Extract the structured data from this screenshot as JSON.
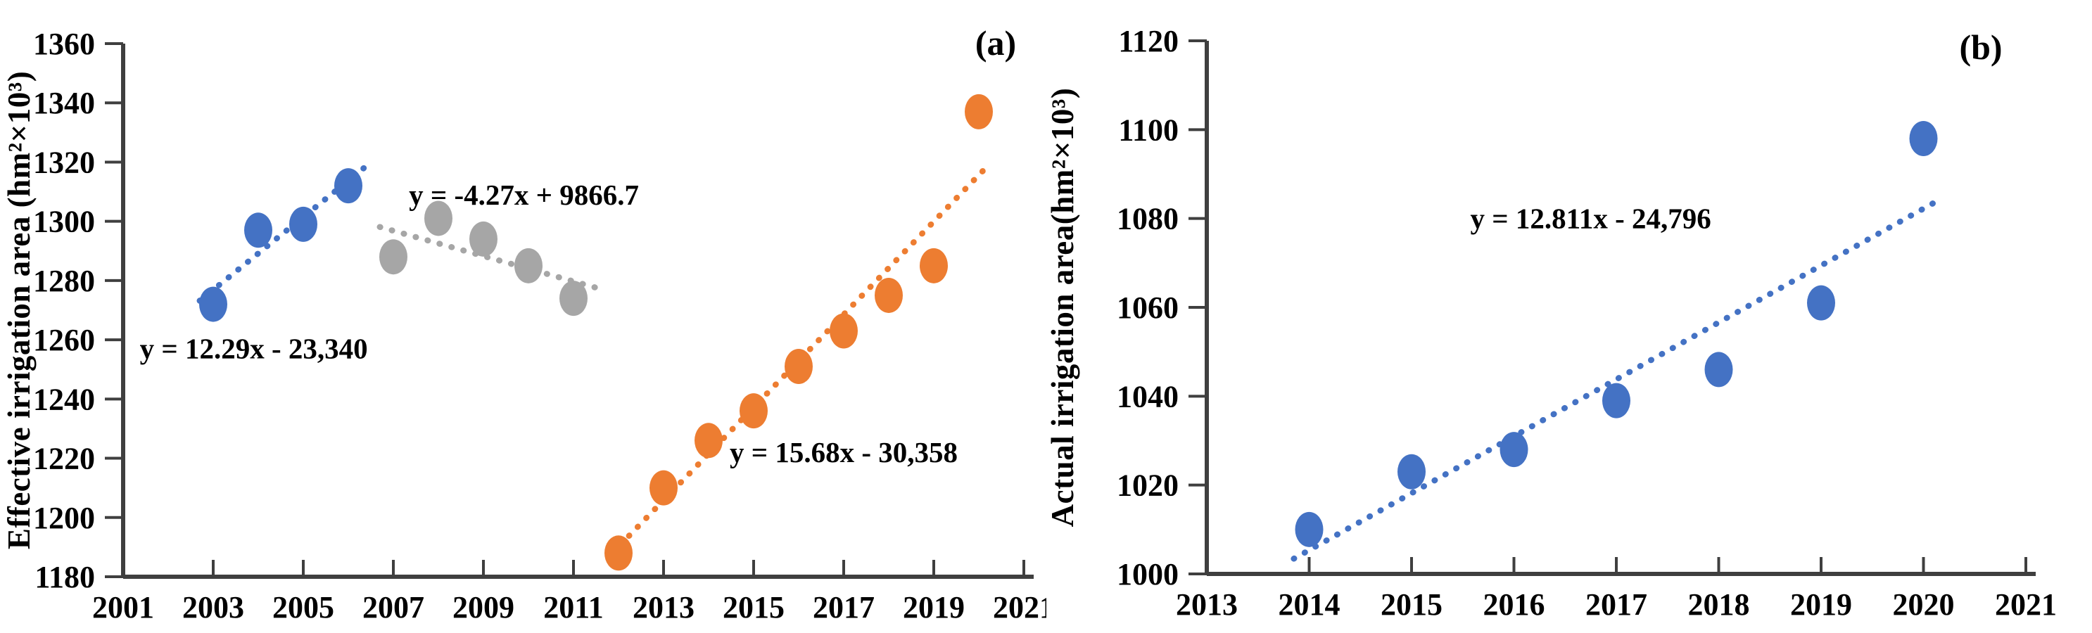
{
  "page": {
    "background": "#ffffff"
  },
  "chart_data": [
    {
      "type": "scatter",
      "panel_label": "(a)",
      "title": "",
      "xlabel": "",
      "ylabel": "Effective irrigation  area (hm²×10³)",
      "xlim": [
        2001,
        2021
      ],
      "ylim": [
        1180,
        1360
      ],
      "x_ticks": [
        2001,
        2003,
        2005,
        2007,
        2009,
        2011,
        2013,
        2015,
        2017,
        2019,
        2021
      ],
      "y_ticks": [
        1180,
        1200,
        1220,
        1240,
        1260,
        1280,
        1300,
        1320,
        1340,
        1360
      ],
      "grid": false,
      "legend": false,
      "axis_color": "#3f3f3f",
      "series": [
        {
          "name": "effective-irrigation-2003-2006",
          "color": "#4472C4",
          "x": [
            2003,
            2004,
            2005,
            2006
          ],
          "y": [
            1272,
            1297,
            1299,
            1312
          ],
          "trend": {
            "equation": "y = 12.29x - 23,340",
            "slope": 12.29,
            "intercept": -23340,
            "x_start": 2002.7,
            "x_end": 2006.45,
            "label_x": 2003.9,
            "label_y": 1257
          }
        },
        {
          "name": "effective-irrigation-2007-2011",
          "color": "#A6A6A6",
          "x": [
            2007,
            2008,
            2009,
            2010,
            2011
          ],
          "y": [
            1288,
            1301,
            1294,
            1285,
            1274
          ],
          "trend": {
            "equation": "y = -4.27x + 9866.7",
            "slope": -4.27,
            "intercept": 9866.7,
            "x_start": 2006.7,
            "x_end": 2011.55,
            "label_x": 2009.9,
            "label_y": 1309
          }
        },
        {
          "name": "effective-irrigation-2012-2020",
          "color": "#ED7D31",
          "x": [
            2012,
            2013,
            2014,
            2015,
            2016,
            2017,
            2018,
            2019,
            2020
          ],
          "y": [
            1188,
            1210,
            1226,
            1236,
            1251,
            1263,
            1275,
            1285,
            1337
          ],
          "trend": {
            "equation": "y = 15.68x - 30,358",
            "slope": 15.68,
            "intercept": -30358,
            "x_start": 2011.85,
            "x_end": 2020.15,
            "label_x": 2017.0,
            "label_y": 1222
          }
        }
      ]
    },
    {
      "type": "scatter",
      "panel_label": "(b)",
      "title": "",
      "xlabel": "",
      "ylabel": "Actual irrigation  area(hm²×10³)",
      "xlim": [
        2013,
        2021
      ],
      "ylim": [
        1000,
        1120
      ],
      "x_ticks": [
        2013,
        2014,
        2015,
        2016,
        2017,
        2018,
        2019,
        2020,
        2021
      ],
      "y_ticks": [
        1000,
        1020,
        1040,
        1060,
        1080,
        1100,
        1120
      ],
      "grid": false,
      "legend": false,
      "axis_color": "#3f3f3f",
      "series": [
        {
          "name": "actual-irrigation-2014-2020",
          "color": "#4472C4",
          "x": [
            2014,
            2015,
            2016,
            2017,
            2018,
            2019,
            2020
          ],
          "y": [
            1010,
            1023,
            1028,
            1039,
            1046,
            1061,
            1098
          ],
          "trend": {
            "equation": "y = 12.811x - 24,796",
            "slope": 12.811,
            "intercept": -24796,
            "x_start": 2013.85,
            "x_end": 2020.1,
            "label_x": 2016.75,
            "label_y": 1080
          }
        }
      ]
    }
  ]
}
